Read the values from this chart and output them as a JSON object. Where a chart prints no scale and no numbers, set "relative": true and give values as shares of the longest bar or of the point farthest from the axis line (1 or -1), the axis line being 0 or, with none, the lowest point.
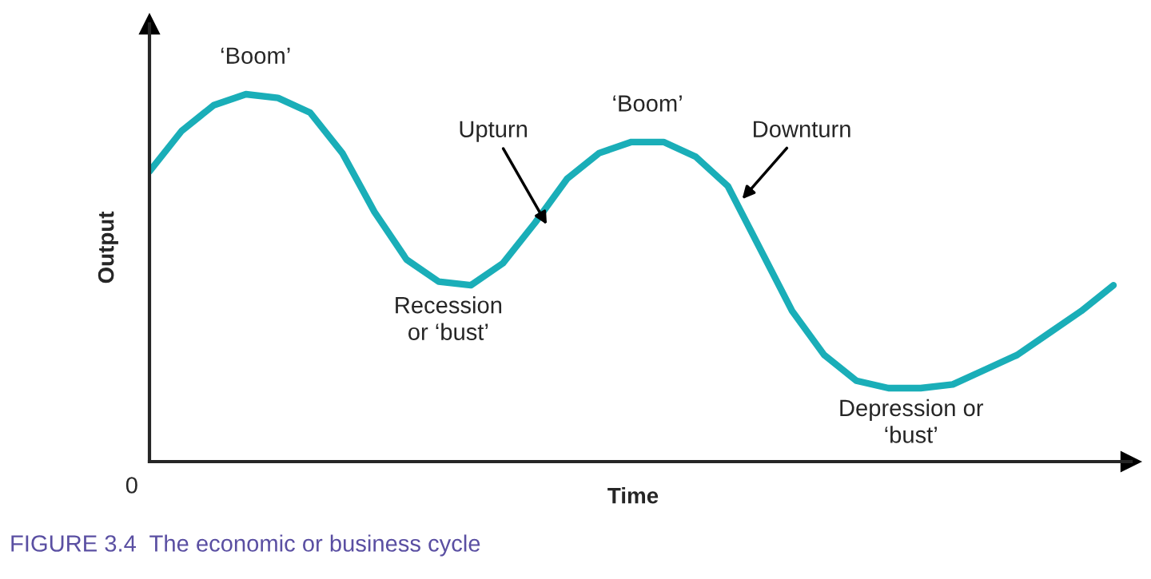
{
  "chart_data": {
    "type": "line",
    "relative": true,
    "xlabel": "Time",
    "ylabel": "Output",
    "title": "FIGURE 3.4  The economic or business cycle",
    "categories": [
      null,
      null,
      null,
      null,
      null,
      null,
      null,
      null,
      null,
      null,
      null,
      null,
      null,
      null,
      null,
      null,
      null,
      null,
      null,
      null,
      null,
      null,
      null,
      null,
      null,
      null,
      null,
      null,
      null,
      null,
      null
    ],
    "series": [
      {
        "color": "#1aaeb8",
        "values": [
          0.79,
          0.9,
          0.97,
          1.0,
          0.99,
          0.95,
          0.84,
          0.68,
          0.55,
          0.49,
          0.48,
          0.54,
          0.65,
          0.77,
          0.84,
          0.87,
          0.87,
          0.83,
          0.75,
          0.58,
          0.41,
          0.29,
          0.22,
          0.2,
          0.2,
          0.21,
          0.25,
          0.29,
          0.35,
          0.41,
          0.48
        ]
      }
    ],
    "annotations": [
      "0",
      "‘Boom’",
      "Upturn",
      "‘Boom’",
      "Downturn",
      "Recession\nor ‘bust’",
      "Depression or\n‘bust’"
    ],
    "legend": false,
    "marker": "none",
    "line_style": "solid"
  }
}
